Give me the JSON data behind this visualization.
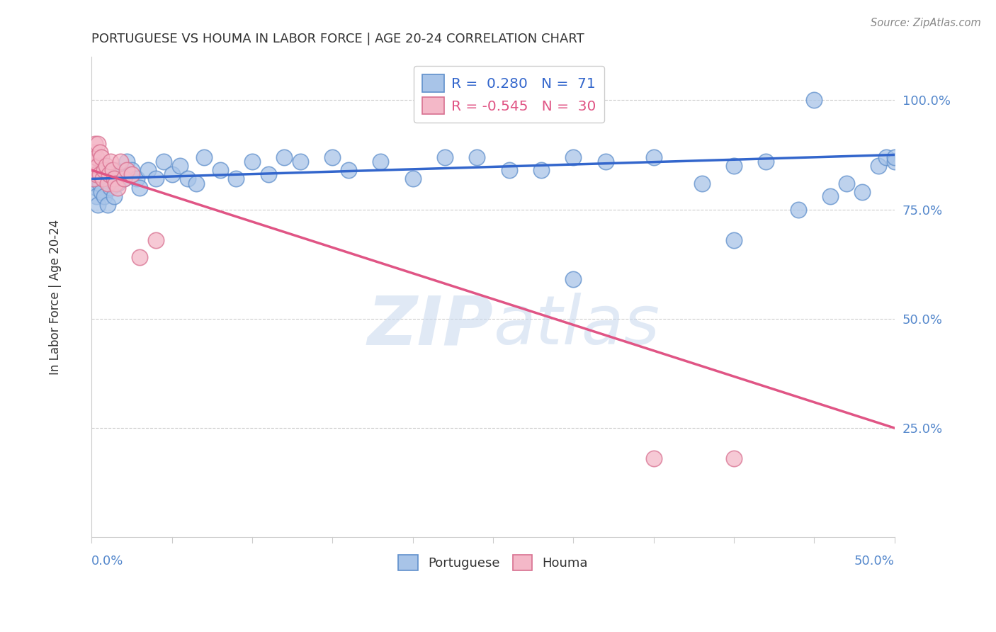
{
  "title": "PORTUGUESE VS HOUMA IN LABOR FORCE | AGE 20-24 CORRELATION CHART",
  "source": "Source: ZipAtlas.com",
  "ylabel": "In Labor Force | Age 20-24",
  "right_yticks": [
    0.25,
    0.5,
    0.75,
    1.0
  ],
  "right_yticklabels": [
    "25.0%",
    "50.0%",
    "75.0%",
    "100.0%"
  ],
  "legend_label1": "Portuguese",
  "legend_label2": "Houma",
  "blue_scatter_x": [
    0.0,
    0.001,
    0.001,
    0.002,
    0.002,
    0.002,
    0.003,
    0.003,
    0.003,
    0.004,
    0.004,
    0.005,
    0.005,
    0.006,
    0.006,
    0.007,
    0.008,
    0.009,
    0.01,
    0.01,
    0.011,
    0.012,
    0.013,
    0.014,
    0.015,
    0.016,
    0.018,
    0.02,
    0.022,
    0.025,
    0.028,
    0.03,
    0.035,
    0.04,
    0.045,
    0.05,
    0.055,
    0.06,
    0.065,
    0.07,
    0.08,
    0.09,
    0.1,
    0.11,
    0.12,
    0.13,
    0.15,
    0.16,
    0.18,
    0.2,
    0.22,
    0.24,
    0.26,
    0.28,
    0.3,
    0.32,
    0.35,
    0.38,
    0.4,
    0.42,
    0.44,
    0.46,
    0.47,
    0.48,
    0.49,
    0.495,
    0.5,
    0.3,
    0.4,
    0.45,
    0.5
  ],
  "blue_scatter_y": [
    0.84,
    0.82,
    0.86,
    0.81,
    0.85,
    0.83,
    0.8,
    0.78,
    0.84,
    0.82,
    0.76,
    0.83,
    0.81,
    0.85,
    0.79,
    0.82,
    0.78,
    0.84,
    0.82,
    0.76,
    0.83,
    0.8,
    0.82,
    0.78,
    0.84,
    0.81,
    0.83,
    0.82,
    0.86,
    0.84,
    0.82,
    0.8,
    0.84,
    0.82,
    0.86,
    0.83,
    0.85,
    0.82,
    0.81,
    0.87,
    0.84,
    0.82,
    0.86,
    0.83,
    0.87,
    0.86,
    0.87,
    0.84,
    0.86,
    0.82,
    0.87,
    0.87,
    0.84,
    0.84,
    0.87,
    0.86,
    0.87,
    0.81,
    0.85,
    0.86,
    0.75,
    0.78,
    0.81,
    0.79,
    0.85,
    0.87,
    0.86,
    0.59,
    0.68,
    1.0,
    0.87
  ],
  "pink_scatter_x": [
    0.0,
    0.001,
    0.001,
    0.002,
    0.002,
    0.003,
    0.003,
    0.004,
    0.004,
    0.005,
    0.005,
    0.006,
    0.007,
    0.008,
    0.009,
    0.01,
    0.011,
    0.012,
    0.013,
    0.014,
    0.015,
    0.016,
    0.018,
    0.02,
    0.022,
    0.025,
    0.03,
    0.04,
    0.35,
    0.4
  ],
  "pink_scatter_y": [
    0.84,
    0.88,
    0.82,
    0.9,
    0.86,
    0.87,
    0.83,
    0.9,
    0.85,
    0.88,
    0.83,
    0.87,
    0.82,
    0.84,
    0.85,
    0.81,
    0.83,
    0.86,
    0.84,
    0.82,
    0.81,
    0.8,
    0.86,
    0.82,
    0.84,
    0.83,
    0.64,
    0.68,
    0.18,
    0.18
  ],
  "blue_trend_x": [
    0.0,
    0.5
  ],
  "blue_trend_y": [
    0.82,
    0.875
  ],
  "pink_trend_x": [
    0.0,
    0.5
  ],
  "pink_trend_y": [
    0.84,
    0.25
  ],
  "xlim": [
    0.0,
    0.5
  ],
  "ylim": [
    0.0,
    1.1
  ],
  "watermark_zip": "ZIP",
  "watermark_atlas": "atlas",
  "title_color": "#333333",
  "source_color": "#888888",
  "axis_color": "#5588cc",
  "blue_dot_face": "#a8c4e8",
  "blue_dot_edge": "#6090cc",
  "pink_dot_face": "#f4b8c8",
  "pink_dot_edge": "#d87090",
  "blue_line_color": "#3366cc",
  "pink_line_color": "#e05585",
  "legend_blue_color": "#3366cc",
  "legend_pink_color": "#e05585",
  "grid_color": "#cccccc",
  "spine_color": "#cccccc"
}
